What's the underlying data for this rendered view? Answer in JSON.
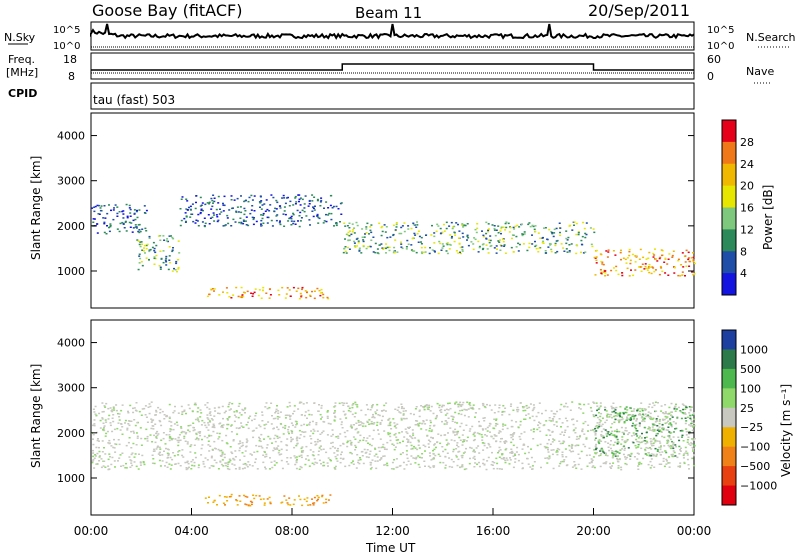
{
  "header": {
    "station": "Goose Bay (fitACF)",
    "beam": "Beam 11",
    "date": "20/Sep/2011"
  },
  "status_panels": {
    "nsky_label": "N.Sky",
    "nsky_ticks": [
      "10^5",
      "10^0"
    ],
    "nsearch_label": "N.Search",
    "freq_label_1": "Freq.",
    "freq_label_2": "[MHz]",
    "freq_ticks": [
      "18",
      "8"
    ],
    "nave_label": "Nave",
    "nave_ticks": [
      "60",
      "0"
    ],
    "cpid_label": "CPID",
    "cpid_value": "tau (fast) 503"
  },
  "chart_data": [
    {
      "type": "heatmap",
      "name": "power",
      "ylabel": "Slant Range [km]",
      "yticks": [
        "4000",
        "3000",
        "2000",
        "1000"
      ],
      "ylim": [
        180,
        4500
      ],
      "colorbar_label": "Power [dB]",
      "colorbar_ticks": [
        "28",
        "24",
        "20",
        "16",
        "12",
        "8",
        "4"
      ],
      "colorbar_colors": [
        "#e6001a",
        "#f07818",
        "#f0b800",
        "#e6e600",
        "#7ec87e",
        "#2c8a5a",
        "#1e4ea8",
        "#1414e0"
      ],
      "scatter_regions": [
        {
          "x": [
            0,
            2.2
          ],
          "y": [
            1800,
            2500
          ],
          "level": "low"
        },
        {
          "x": [
            1.8,
            3.5
          ],
          "y": [
            1000,
            1800
          ],
          "level": "mid"
        },
        {
          "x": [
            3.5,
            10
          ],
          "y": [
            2000,
            2700
          ],
          "level": "low"
        },
        {
          "x": [
            4.5,
            9.5
          ],
          "y": [
            400,
            650
          ],
          "level": "high"
        },
        {
          "x": [
            10,
            20
          ],
          "y": [
            1400,
            2100
          ],
          "level": "mid"
        },
        {
          "x": [
            20,
            24
          ],
          "y": [
            900,
            1500
          ],
          "level": "high"
        }
      ]
    },
    {
      "type": "heatmap",
      "name": "velocity",
      "ylabel": "Slant Range [km]",
      "yticks": [
        "4000",
        "3000",
        "2000",
        "1000"
      ],
      "ylim": [
        180,
        4500
      ],
      "colorbar_label": "Velocity [m s⁻¹]",
      "colorbar_ticks": [
        "1000",
        "500",
        "100",
        "25",
        "−25",
        "−100",
        "−500",
        "−1000"
      ],
      "colorbar_colors": [
        "#1d3fa0",
        "#2c7a4a",
        "#4db84d",
        "#8fd86a",
        "#c8c8c0",
        "#f0b000",
        "#f08018",
        "#e84010",
        "#e00010"
      ],
      "scatter_regions": [
        {
          "x": [
            0,
            24
          ],
          "y": [
            1200,
            2700
          ],
          "level": "grey"
        },
        {
          "x": [
            4.5,
            9.5
          ],
          "y": [
            400,
            650
          ],
          "level": "orange"
        },
        {
          "x": [
            20,
            24
          ],
          "y": [
            1500,
            2600
          ],
          "level": "green"
        }
      ]
    }
  ],
  "time_axis": {
    "label": "Time UT",
    "ticks": [
      "00:00",
      "04:00",
      "08:00",
      "12:00",
      "16:00",
      "20:00",
      "00:00"
    ],
    "range_hours": [
      0,
      24
    ]
  }
}
